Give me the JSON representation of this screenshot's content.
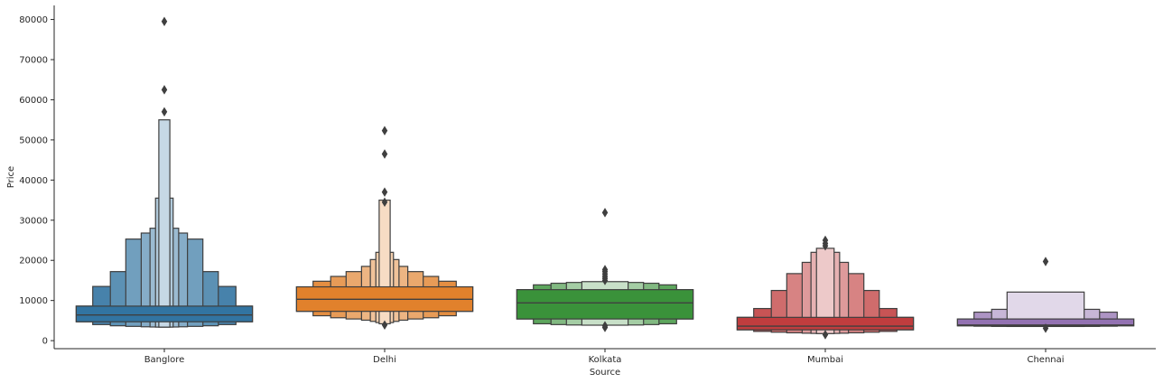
{
  "chart_data": {
    "type": "boxenplot",
    "title": "",
    "xlabel": "Source",
    "ylabel": "Price",
    "ylim": [
      -2000,
      83500
    ],
    "yticks": [
      0,
      10000,
      20000,
      30000,
      40000,
      50000,
      60000,
      70000,
      80000
    ],
    "grid": false,
    "legend": "none",
    "categories": [
      "Banglore",
      "Delhi",
      "Kolkata",
      "Mumbai",
      "Chennai"
    ],
    "series": [
      {
        "category": "Banglore",
        "color": "#3274a1",
        "median": 6400,
        "boxes": [
          {
            "level": 0,
            "lo": 4700,
            "hi": 8600
          },
          {
            "level": 1,
            "lo": 4000,
            "hi": 13500
          },
          {
            "level": 2,
            "lo": 3700,
            "hi": 17200
          },
          {
            "level": 3,
            "lo": 3550,
            "hi": 25300
          },
          {
            "level": 4,
            "lo": 3450,
            "hi": 26800
          },
          {
            "level": 5,
            "lo": 3400,
            "hi": 28000
          },
          {
            "level": 6,
            "lo": 3380,
            "hi": 35500
          },
          {
            "level": 7,
            "lo": 3370,
            "hi": 55000
          }
        ],
        "outliers": [
          57000,
          62500,
          79500
        ]
      },
      {
        "category": "Delhi",
        "color": "#e1812c",
        "median": 10300,
        "boxes": [
          {
            "level": 0,
            "lo": 7300,
            "hi": 13400
          },
          {
            "level": 1,
            "lo": 6200,
            "hi": 14800
          },
          {
            "level": 2,
            "lo": 5700,
            "hi": 16000
          },
          {
            "level": 3,
            "lo": 5400,
            "hi": 17200
          },
          {
            "level": 4,
            "lo": 5100,
            "hi": 18500
          },
          {
            "level": 5,
            "lo": 4800,
            "hi": 20200
          },
          {
            "level": 6,
            "lo": 4500,
            "hi": 22000
          },
          {
            "level": 7,
            "lo": 4200,
            "hi": 35000
          }
        ],
        "outliers": [
          3900,
          34500,
          37000,
          46500,
          52300
        ]
      },
      {
        "category": "Kolkata",
        "color": "#3a923a",
        "median": 9400,
        "boxes": [
          {
            "level": 0,
            "lo": 5400,
            "hi": 12700
          },
          {
            "level": 1,
            "lo": 4200,
            "hi": 13900
          },
          {
            "level": 2,
            "lo": 4000,
            "hi": 14300
          },
          {
            "level": 3,
            "lo": 3900,
            "hi": 14500
          },
          {
            "level": 4,
            "lo": 3850,
            "hi": 14700
          }
        ],
        "outliers": [
          3300,
          3700,
          15000,
          15500,
          16000,
          16600,
          17200,
          17700,
          31900
        ]
      },
      {
        "category": "Mumbai",
        "color": "#c03d3e",
        "median": 3600,
        "boxes": [
          {
            "level": 0,
            "lo": 2700,
            "hi": 5800
          },
          {
            "level": 1,
            "lo": 2300,
            "hi": 8000
          },
          {
            "level": 2,
            "lo": 2100,
            "hi": 12500
          },
          {
            "level": 3,
            "lo": 1950,
            "hi": 16700
          },
          {
            "level": 4,
            "lo": 1850,
            "hi": 19500
          },
          {
            "level": 5,
            "lo": 1800,
            "hi": 22000
          },
          {
            "level": 6,
            "lo": 1760,
            "hi": 23000
          }
        ],
        "outliers": [
          1500,
          23600,
          24200,
          25000
        ]
      },
      {
        "category": "Chennai",
        "color": "#9372b2",
        "median": 3900,
        "boxes": [
          {
            "level": 0,
            "lo": 3700,
            "hi": 5400
          },
          {
            "level": 1,
            "lo": 3600,
            "hi": 7100
          },
          {
            "level": 2,
            "lo": 3550,
            "hi": 7800
          },
          {
            "level": 3,
            "lo": 3530,
            "hi": 12100
          }
        ],
        "outliers": [
          3100,
          19700
        ]
      }
    ]
  }
}
